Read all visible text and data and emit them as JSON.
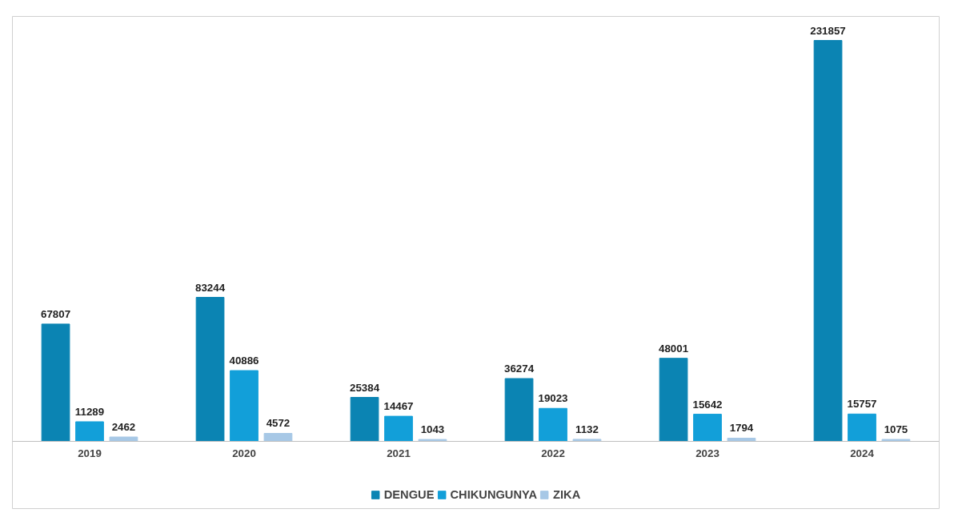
{
  "chart_data": {
    "type": "bar",
    "categories": [
      "2019",
      "2020",
      "2021",
      "2022",
      "2023",
      "2024"
    ],
    "series": [
      {
        "name": "DENGUE",
        "color": "#0b84b3",
        "values": [
          67807,
          83244,
          25384,
          36274,
          48001,
          231857
        ]
      },
      {
        "name": "CHIKUNGUNYA",
        "color": "#129fd9",
        "values": [
          11289,
          40886,
          14467,
          19023,
          15642,
          15757
        ]
      },
      {
        "name": "ZIKA",
        "color": "#a7c8e6",
        "values": [
          2462,
          4572,
          1043,
          1132,
          1794,
          1075
        ]
      }
    ],
    "data_labels": true,
    "legend": "bottom",
    "grid": false,
    "tick_labels": "x"
  }
}
